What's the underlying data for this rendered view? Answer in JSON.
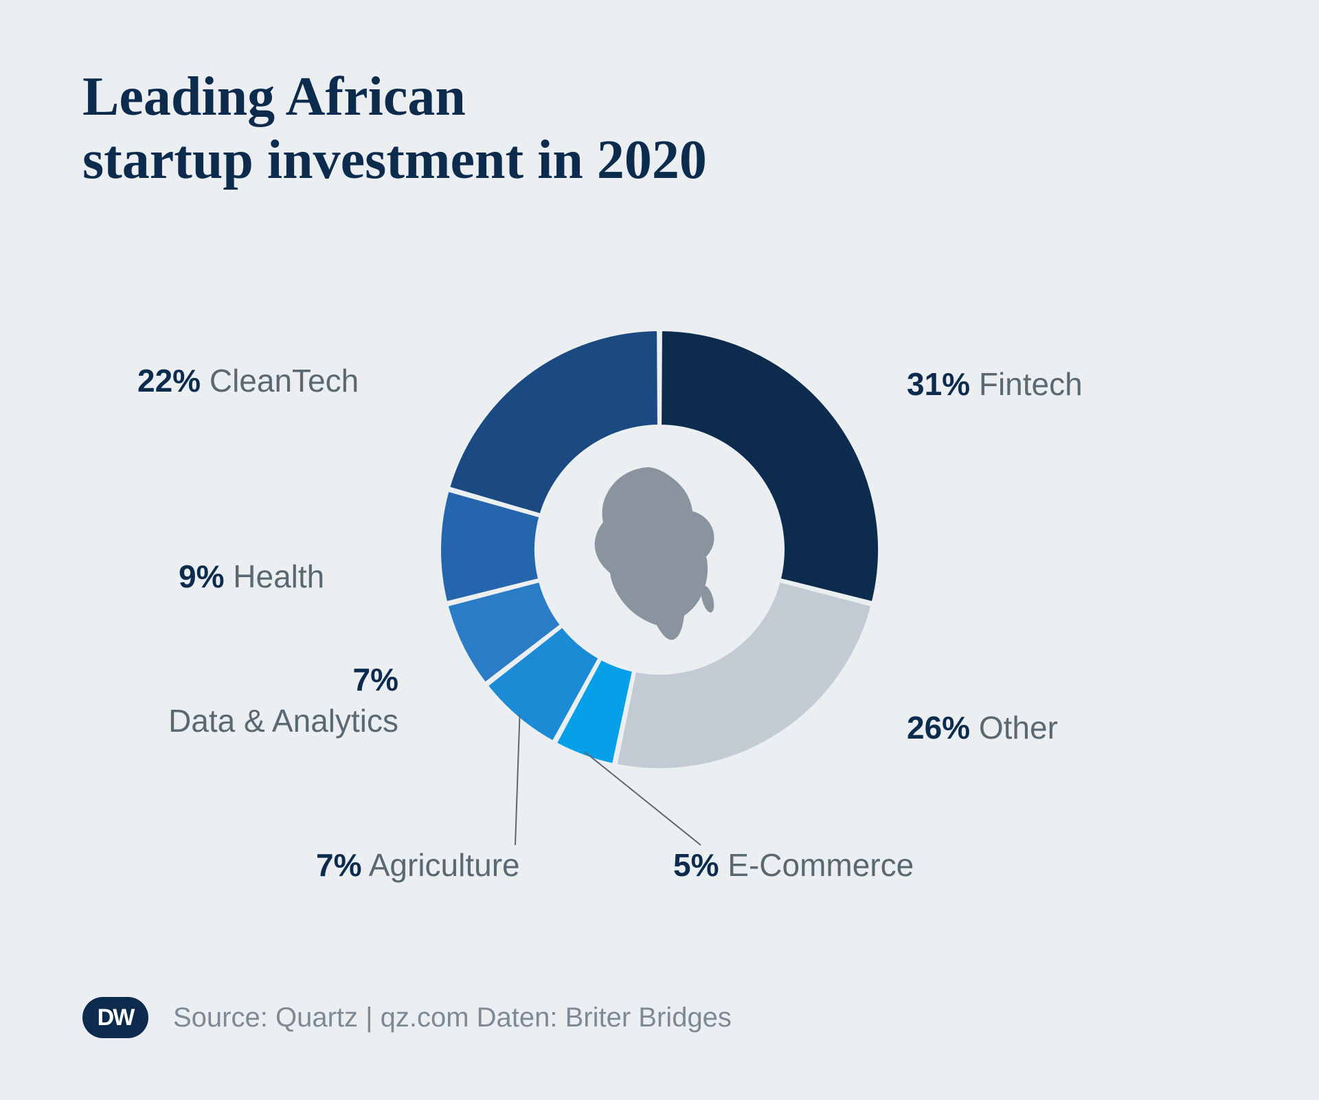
{
  "title_line1": "Leading African",
  "title_line2": "startup investment in 2020",
  "chart": {
    "type": "donut",
    "background_color": "#eceff2",
    "outer_radius": 320,
    "inner_radius": 180,
    "center_icon": "africa",
    "center_icon_color": "#8a949e",
    "slice_gap_color": "#eceff2",
    "slices": [
      {
        "label": "Fintech",
        "value": 31,
        "color": "#0c2b4d"
      },
      {
        "label": "Other",
        "value": 26,
        "color": "#c2cbd4"
      },
      {
        "label": "E-Commerce",
        "value": 5,
        "color": "#05a0e8"
      },
      {
        "label": "Agriculture",
        "value": 7,
        "color": "#1b8bd5"
      },
      {
        "label": "Data & Analytics",
        "value": 7,
        "color": "#2b7cc7"
      },
      {
        "label": "Health",
        "value": 9,
        "color": "#2565ad"
      },
      {
        "label": "CleanTech",
        "value": 22,
        "color": "#1a4a81"
      }
    ],
    "label_fontsize": 46,
    "label_pct_color": "#0c2b4d",
    "label_text_color": "#5a6872",
    "leaders": [
      {
        "from_slice": 2,
        "to": [
          60,
          430
        ]
      },
      {
        "from_slice": 3,
        "to": [
          -210,
          430
        ]
      }
    ]
  },
  "labels": {
    "fintech": {
      "pct": "31%",
      "name": "Fintech"
    },
    "other": {
      "pct": "26%",
      "name": "Other"
    },
    "ecommerce": {
      "pct": "5%",
      "name": "E-Commerce"
    },
    "agriculture": {
      "pct": "7%",
      "name": "Agriculture"
    },
    "data": {
      "pct": "7%",
      "name": "Data & Analytics"
    },
    "health": {
      "pct": "9%",
      "name": "Health"
    },
    "cleantech": {
      "pct": "22%",
      "name": "CleanTech"
    }
  },
  "footer": {
    "logo": "DW",
    "source": "Source: Quartz | qz.com Daten: Briter Bridges"
  },
  "colors": {
    "background": "#eceff2",
    "title": "#0c2b4d",
    "body_text": "#5a6872",
    "source_text": "#7d8a95",
    "logo_bg": "#0c2b4d"
  }
}
